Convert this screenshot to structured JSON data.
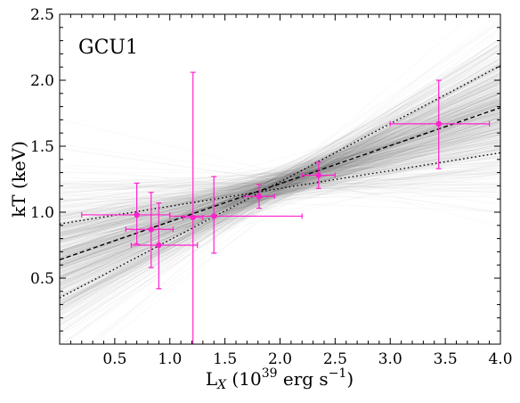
{
  "chart_data": {
    "type": "scatter",
    "panel_label": "GCU1",
    "xlabel_main": "L",
    "xlabel_sub": "X",
    "xlabel_rest": " (10",
    "xlabel_exp": "39",
    "xlabel_unit": " erg s",
    "xlabel_unit_exp": "−1",
    "xlabel_close": ")",
    "ylabel": "kT (keV)",
    "xlim": [
      0.0,
      4.0
    ],
    "ylim": [
      0.0,
      2.5
    ],
    "x_ticks": [
      0.5,
      1.0,
      1.5,
      2.0,
      2.5,
      3.0,
      3.5,
      4.0
    ],
    "x_tick_labels": [
      "0.5",
      "1.0",
      "1.5",
      "2.0",
      "2.5",
      "3.0",
      "3.5",
      "4.0"
    ],
    "y_ticks": [
      0.5,
      1.0,
      1.5,
      2.0,
      2.5
    ],
    "y_tick_labels": [
      "0.5",
      "1.0",
      "1.5",
      "2.0",
      "2.5"
    ],
    "points": [
      {
        "x": 0.7,
        "y": 0.98,
        "xerr_lo": 0.5,
        "xerr_hi": 0.3,
        "yerr_lo": 0.22,
        "yerr_hi": 0.24
      },
      {
        "x": 0.83,
        "y": 0.87,
        "xerr_lo": 0.23,
        "xerr_hi": 0.2,
        "yerr_lo": 0.29,
        "yerr_hi": 0.28
      },
      {
        "x": 0.9,
        "y": 0.75,
        "xerr_lo": 0.25,
        "xerr_hi": 0.35,
        "yerr_lo": 0.33,
        "yerr_hi": 0.32
      },
      {
        "x": 1.21,
        "y": 0.96,
        "xerr_lo": 0.09,
        "xerr_hi": 0.09,
        "yerr_lo": 0.96,
        "yerr_hi": 1.1
      },
      {
        "x": 1.4,
        "y": 0.97,
        "xerr_lo": 0.4,
        "xerr_hi": 0.8,
        "yerr_lo": 0.28,
        "yerr_hi": 0.3
      },
      {
        "x": 1.81,
        "y": 1.12,
        "xerr_lo": 0.14,
        "xerr_hi": 0.14,
        "yerr_lo": 0.09,
        "yerr_hi": 0.09
      },
      {
        "x": 2.35,
        "y": 1.28,
        "xerr_lo": 0.15,
        "xerr_hi": 0.15,
        "yerr_lo": 0.1,
        "yerr_hi": 0.1
      },
      {
        "x": 3.44,
        "y": 1.67,
        "xerr_lo": 0.44,
        "xerr_hi": 0.46,
        "yerr_lo": 0.34,
        "yerr_hi": 0.33
      }
    ],
    "best_fit": {
      "intercept": 0.64,
      "slope": 0.288
    },
    "bound_upper": {
      "intercept": 0.35,
      "slope": 0.44
    },
    "bound_lower": {
      "intercept": 0.91,
      "slope": 0.135
    },
    "mcmc": {
      "n_lines": 700,
      "center_x": 2.05,
      "center_y": 1.22,
      "slope_mean": 0.285,
      "slope_sigma": 0.14,
      "intercept_jitter": 0.06,
      "opacity": 0.05
    },
    "colors": {
      "points": "#ff22cc",
      "fit": "#000000",
      "mcmc": "#606060",
      "axes": "#000000"
    },
    "grid": false
  }
}
